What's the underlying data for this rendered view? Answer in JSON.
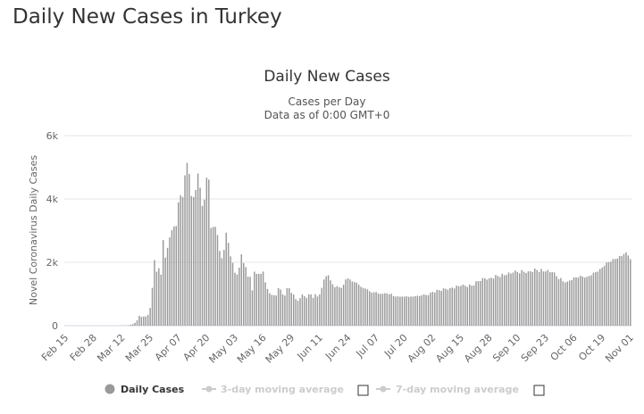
{
  "page": {
    "title": "Daily New Cases in Turkey"
  },
  "chart_data": {
    "type": "bar",
    "title": "Daily New Cases",
    "subtitle_lines": [
      "Cases per Day",
      "Data as of 0:00 GMT+0"
    ],
    "xlabel": "",
    "ylabel": "Novel Coronavirus Daily Cases",
    "ylim": [
      0,
      6000
    ],
    "yticks": [
      0,
      2000,
      4000,
      6000
    ],
    "yticklabels": [
      "0",
      "2k",
      "4k",
      "6k"
    ],
    "grid": true,
    "start_date": "2020-02-15",
    "xticklabels": [
      "Feb 15",
      "Feb 28",
      "Mar 12",
      "Mar 25",
      "Apr 07",
      "Apr 20",
      "May 03",
      "May 16",
      "May 29",
      "Jun 11",
      "Jun 24",
      "Jul 07",
      "Jul 20",
      "Aug 02",
      "Aug 15",
      "Aug 28",
      "Sep 10",
      "Sep 23",
      "Oct 06",
      "Oct 19",
      "Nov 01"
    ],
    "bar_color": "#999999",
    "anchor_values": [
      [
        "2020-02-15",
        0
      ],
      [
        "2020-03-09",
        0
      ],
      [
        "2020-03-11",
        1
      ],
      [
        "2020-03-13",
        4
      ],
      [
        "2020-03-15",
        12
      ],
      [
        "2020-03-16",
        29
      ],
      [
        "2020-03-17",
        51
      ],
      [
        "2020-03-18",
        93
      ],
      [
        "2020-03-19",
        168
      ],
      [
        "2020-03-20",
        311
      ],
      [
        "2020-03-21",
        277
      ],
      [
        "2020-03-22",
        289
      ],
      [
        "2020-03-23",
        293
      ],
      [
        "2020-03-24",
        343
      ],
      [
        "2020-03-25",
        561
      ],
      [
        "2020-03-26",
        1196
      ],
      [
        "2020-03-27",
        2069
      ],
      [
        "2020-03-28",
        1704
      ],
      [
        "2020-03-29",
        1815
      ],
      [
        "2020-03-30",
        1610
      ],
      [
        "2020-03-31",
        2704
      ],
      [
        "2020-04-01",
        2148
      ],
      [
        "2020-04-02",
        2456
      ],
      [
        "2020-04-03",
        2786
      ],
      [
        "2020-04-04",
        3013
      ],
      [
        "2020-04-05",
        3135
      ],
      [
        "2020-04-06",
        3148
      ],
      [
        "2020-04-07",
        3892
      ],
      [
        "2020-04-08",
        4117
      ],
      [
        "2020-04-09",
        4056
      ],
      [
        "2020-04-10",
        4747
      ],
      [
        "2020-04-11",
        5138
      ],
      [
        "2020-04-12",
        4789
      ],
      [
        "2020-04-13",
        4093
      ],
      [
        "2020-04-14",
        4062
      ],
      [
        "2020-04-15",
        4281
      ],
      [
        "2020-04-16",
        4801
      ],
      [
        "2020-04-17",
        4353
      ],
      [
        "2020-04-18",
        3783
      ],
      [
        "2020-04-19",
        3977
      ],
      [
        "2020-04-20",
        4674
      ],
      [
        "2020-04-21",
        4611
      ],
      [
        "2020-04-22",
        3083
      ],
      [
        "2020-04-23",
        3116
      ],
      [
        "2020-04-24",
        3122
      ],
      [
        "2020-04-25",
        2861
      ],
      [
        "2020-04-26",
        2357
      ],
      [
        "2020-04-27",
        2131
      ],
      [
        "2020-04-28",
        2392
      ],
      [
        "2020-04-29",
        2936
      ],
      [
        "2020-04-30",
        2615
      ],
      [
        "2020-05-01",
        2188
      ],
      [
        "2020-05-02",
        1983
      ],
      [
        "2020-05-03",
        1670
      ],
      [
        "2020-05-04",
        1614
      ],
      [
        "2020-05-05",
        1832
      ],
      [
        "2020-05-06",
        2253
      ],
      [
        "2020-05-07",
        1977
      ],
      [
        "2020-05-08",
        1848
      ],
      [
        "2020-05-09",
        1546
      ],
      [
        "2020-05-10",
        1542
      ],
      [
        "2020-05-11",
        1114
      ],
      [
        "2020-05-12",
        1704
      ],
      [
        "2020-05-13",
        1635
      ],
      [
        "2020-05-14",
        1639
      ],
      [
        "2020-05-15",
        1635
      ],
      [
        "2020-05-16",
        1708
      ],
      [
        "2020-05-17",
        1368
      ],
      [
        "2020-05-18",
        1158
      ],
      [
        "2020-05-19",
        1022
      ],
      [
        "2020-05-20",
        972
      ],
      [
        "2020-05-21",
        961
      ],
      [
        "2020-05-22",
        952
      ],
      [
        "2020-05-23",
        1186
      ],
      [
        "2020-05-24",
        1141
      ],
      [
        "2020-05-25",
        987
      ],
      [
        "2020-05-26",
        948
      ],
      [
        "2020-05-27",
        1186
      ],
      [
        "2020-05-28",
        1182
      ],
      [
        "2020-05-29",
        1035
      ],
      [
        "2020-05-30",
        983
      ],
      [
        "2020-05-31",
        839
      ],
      [
        "2020-06-01",
        786
      ],
      [
        "2020-06-02",
        867
      ],
      [
        "2020-06-03",
        987
      ],
      [
        "2020-06-04",
        930
      ],
      [
        "2020-06-05",
        877
      ],
      [
        "2020-06-06",
        988
      ],
      [
        "2020-06-07",
        989
      ],
      [
        "2020-06-08",
        878
      ],
      [
        "2020-06-09",
        993
      ],
      [
        "2020-06-10",
        922
      ],
      [
        "2020-06-11",
        987
      ],
      [
        "2020-06-12",
        1195
      ],
      [
        "2020-06-13",
        1459
      ],
      [
        "2020-06-14",
        1562
      ],
      [
        "2020-06-15",
        1592
      ],
      [
        "2020-06-16",
        1429
      ],
      [
        "2020-06-17",
        1304
      ],
      [
        "2020-06-18",
        1214
      ],
      [
        "2020-06-19",
        1248
      ],
      [
        "2020-06-20",
        1212
      ],
      [
        "2020-06-21",
        1192
      ],
      [
        "2020-06-22",
        1293
      ],
      [
        "2020-06-23",
        1458
      ],
      [
        "2020-06-24",
        1492
      ],
      [
        "2020-06-25",
        1458
      ],
      [
        "2020-06-26",
        1396
      ],
      [
        "2020-06-27",
        1374
      ],
      [
        "2020-06-28",
        1356
      ],
      [
        "2020-06-29",
        1293
      ],
      [
        "2020-06-30",
        1228
      ],
      [
        "2020-07-01",
        1192
      ],
      [
        "2020-07-02",
        1172
      ],
      [
        "2020-07-03",
        1148
      ],
      [
        "2020-07-04",
        1086
      ],
      [
        "2020-07-05",
        1041
      ],
      [
        "2020-07-06",
        1053
      ],
      [
        "2020-07-07",
        1062
      ],
      [
        "2020-07-08",
        1016
      ],
      [
        "2020-07-09",
        1001
      ],
      [
        "2020-07-10",
        1008
      ],
      [
        "2020-07-11",
        1024
      ],
      [
        "2020-07-12",
        1016
      ],
      [
        "2020-07-13",
        992
      ],
      [
        "2020-07-14",
        1008
      ],
      [
        "2020-07-15",
        933
      ],
      [
        "2020-07-16",
        918
      ],
      [
        "2020-07-17",
        926
      ],
      [
        "2020-07-18",
        914
      ],
      [
        "2020-07-19",
        919
      ],
      [
        "2020-07-20",
        917
      ],
      [
        "2020-07-21",
        926
      ],
      [
        "2020-07-22",
        912
      ],
      [
        "2020-07-23",
        918
      ],
      [
        "2020-07-24",
        919
      ],
      [
        "2020-07-25",
        935
      ],
      [
        "2020-07-26",
        945
      ],
      [
        "2020-07-27",
        934
      ],
      [
        "2020-07-28",
        960
      ],
      [
        "2020-07-29",
        989
      ],
      [
        "2020-07-30",
        967
      ],
      [
        "2020-07-31",
        964
      ],
      [
        "2020-08-01",
        1043
      ],
      [
        "2020-08-05",
        1121
      ],
      [
        "2020-08-10",
        1186
      ],
      [
        "2020-08-15",
        1256
      ],
      [
        "2020-08-20",
        1263
      ],
      [
        "2020-08-25",
        1502
      ],
      [
        "2020-08-28",
        1495
      ],
      [
        "2020-09-01",
        1570
      ],
      [
        "2020-09-05",
        1604
      ],
      [
        "2020-09-08",
        1674
      ],
      [
        "2020-09-10",
        1698
      ],
      [
        "2020-09-13",
        1704
      ],
      [
        "2020-09-15",
        1716
      ],
      [
        "2020-09-19",
        1757
      ],
      [
        "2020-09-23",
        1713
      ],
      [
        "2020-09-26",
        1690
      ],
      [
        "2020-09-28",
        1563
      ],
      [
        "2020-10-01",
        1400
      ],
      [
        "2020-10-03",
        1392
      ],
      [
        "2020-10-06",
        1522
      ],
      [
        "2020-10-09",
        1576
      ],
      [
        "2020-10-12",
        1543
      ],
      [
        "2020-10-15",
        1672
      ],
      [
        "2020-10-18",
        1787
      ],
      [
        "2020-10-21",
        1997
      ],
      [
        "2020-10-24",
        2102
      ],
      [
        "2020-10-27",
        2196
      ],
      [
        "2020-10-29",
        2262
      ],
      [
        "2020-10-31",
        2214
      ],
      [
        "2020-11-01",
        2100
      ]
    ]
  },
  "legend": {
    "items": [
      {
        "label": "Daily Cases",
        "active": true
      },
      {
        "label": "3-day moving average",
        "active": false
      },
      {
        "label": "7-day moving average",
        "active": false
      }
    ]
  }
}
